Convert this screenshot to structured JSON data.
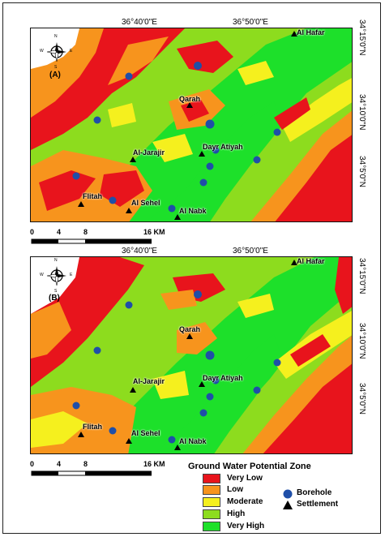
{
  "panels": [
    {
      "label": "(A)",
      "top_lon_labels": [
        "36°40'0\"E",
        "36°50'0\"E"
      ],
      "right_lat_labels": [
        "34°15'0\"N",
        "34°10'0\"N",
        "34°5'0\"N"
      ],
      "settlements": [
        "Al Hafar",
        "Qarah",
        "Al-Jarajir",
        "Dayr Atiyah",
        "Flitah",
        "Al Sehel",
        "Al Nabk"
      ]
    },
    {
      "label": "(B)",
      "top_lon_labels": [
        "36°40'0\"E",
        "36°50'0\"E"
      ],
      "right_lat_labels": [
        "34°15'0\"N",
        "34°10'0\"N",
        "34°5'0\"N"
      ],
      "settlements": [
        "Al Hafar",
        "Qarah",
        "Al-Jarajir",
        "Dayr Atiyah",
        "Flitah",
        "Al Sehel",
        "Al Nabk"
      ]
    }
  ],
  "north_arrow": {
    "n": "N",
    "s": "S",
    "e": "E",
    "w": "W"
  },
  "scale_bar": {
    "ticks": [
      "0",
      "4",
      "8",
      "16 KM"
    ]
  },
  "legend": {
    "title": "Ground Water Potential Zone",
    "classes": [
      {
        "label": "Very Low",
        "color": "#e8141c"
      },
      {
        "label": "Low",
        "color": "#f7941d"
      },
      {
        "label": "Moderate",
        "color": "#f5f01e"
      },
      {
        "label": "High",
        "color": "#8ddc1e"
      },
      {
        "label": "Very High",
        "color": "#1de02a"
      }
    ],
    "symbols": [
      {
        "label": "Borehole",
        "color": "#1f4fa8",
        "icon": "circle"
      },
      {
        "label": "Settlement",
        "color": "#000000",
        "icon": "triangle"
      }
    ]
  }
}
